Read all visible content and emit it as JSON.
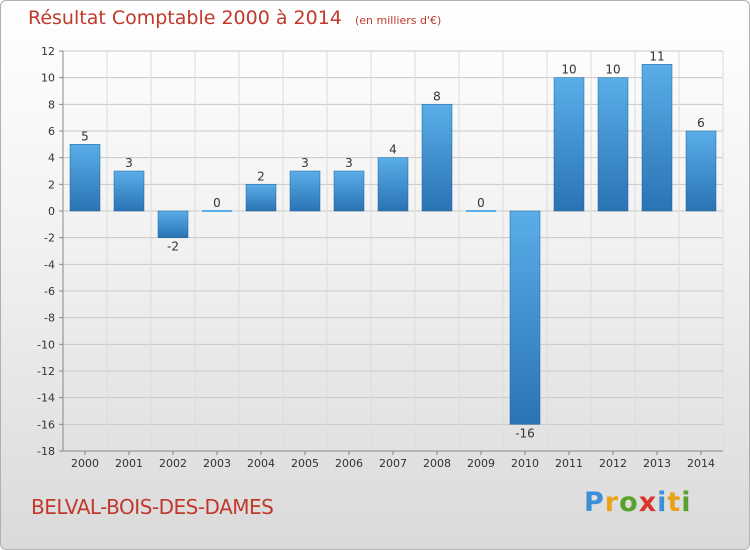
{
  "title": {
    "main": "Résultat Comptable 2000 à 2014",
    "unit": "(en milliers d'€)"
  },
  "place_name": "BELVAL-BOIS-DES-DAMES",
  "logo": {
    "text": "Proxiti",
    "letters": [
      "P",
      "r",
      "o",
      "x",
      "i",
      "t",
      "i"
    ],
    "colors": [
      "#3a8fd6",
      "#e8a317",
      "#5aa02c",
      "#d9342b",
      "#3a8fd6",
      "#e8a317",
      "#5aa02c"
    ]
  },
  "colors": {
    "bar_top": "#5aaee8",
    "bar_bottom": "#2a73b4",
    "bar_edge": "#1f5f99",
    "title": "#c0392b"
  },
  "chart_data": {
    "type": "bar",
    "title": "Résultat Comptable 2000 à 2014",
    "subtitle": "(en milliers d'€)",
    "xlabel": "",
    "ylabel": "",
    "categories": [
      "2000",
      "2001",
      "2002",
      "2003",
      "2004",
      "2005",
      "2006",
      "2007",
      "2008",
      "2009",
      "2010",
      "2011",
      "2012",
      "2013",
      "2014"
    ],
    "values": [
      5,
      3,
      -2,
      0,
      2,
      3,
      3,
      4,
      8,
      0,
      -16,
      10,
      10,
      11,
      6
    ],
    "ylim": [
      -18,
      12
    ],
    "yticks": [
      12,
      10,
      8,
      6,
      4,
      2,
      0,
      -2,
      -4,
      -6,
      -8,
      -10,
      -12,
      -14,
      -16,
      -18
    ],
    "grid": true,
    "legend": "none"
  }
}
